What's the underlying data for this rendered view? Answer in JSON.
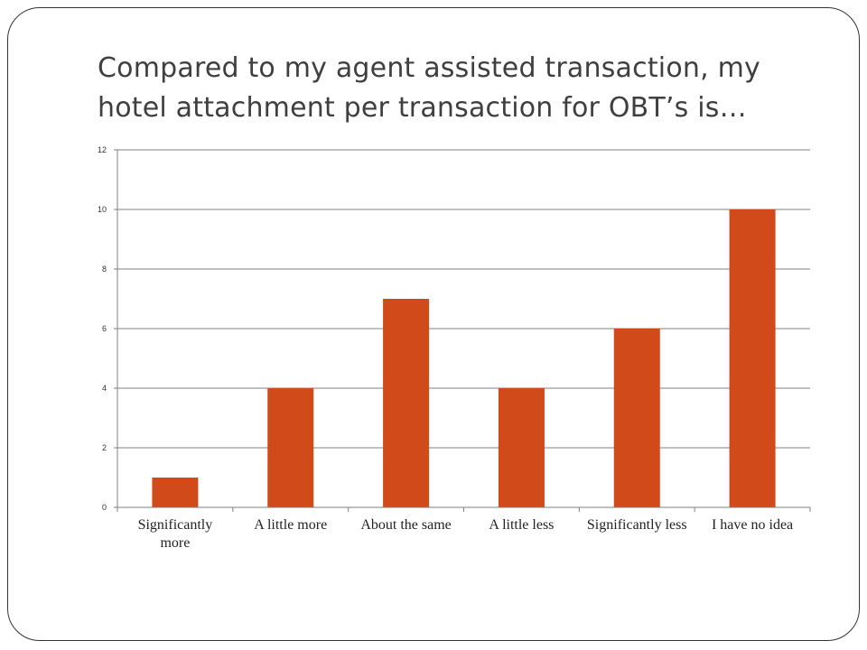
{
  "title": "Compared to my agent assisted transaction, my hotel attachment per transaction for OBT’s is…",
  "chart_data": {
    "type": "bar",
    "categories": [
      "Significantly more",
      "A little more",
      "About the same",
      "A little less",
      "Significantly less",
      "I have no idea"
    ],
    "values": [
      1,
      4,
      7,
      4,
      6,
      10
    ],
    "yticks": [
      "0",
      "2",
      "4",
      "6",
      "8",
      "10",
      "12"
    ],
    "ylim": [
      0,
      12
    ],
    "grid": true,
    "legend": "none",
    "bar_color": "#d04a1a"
  }
}
